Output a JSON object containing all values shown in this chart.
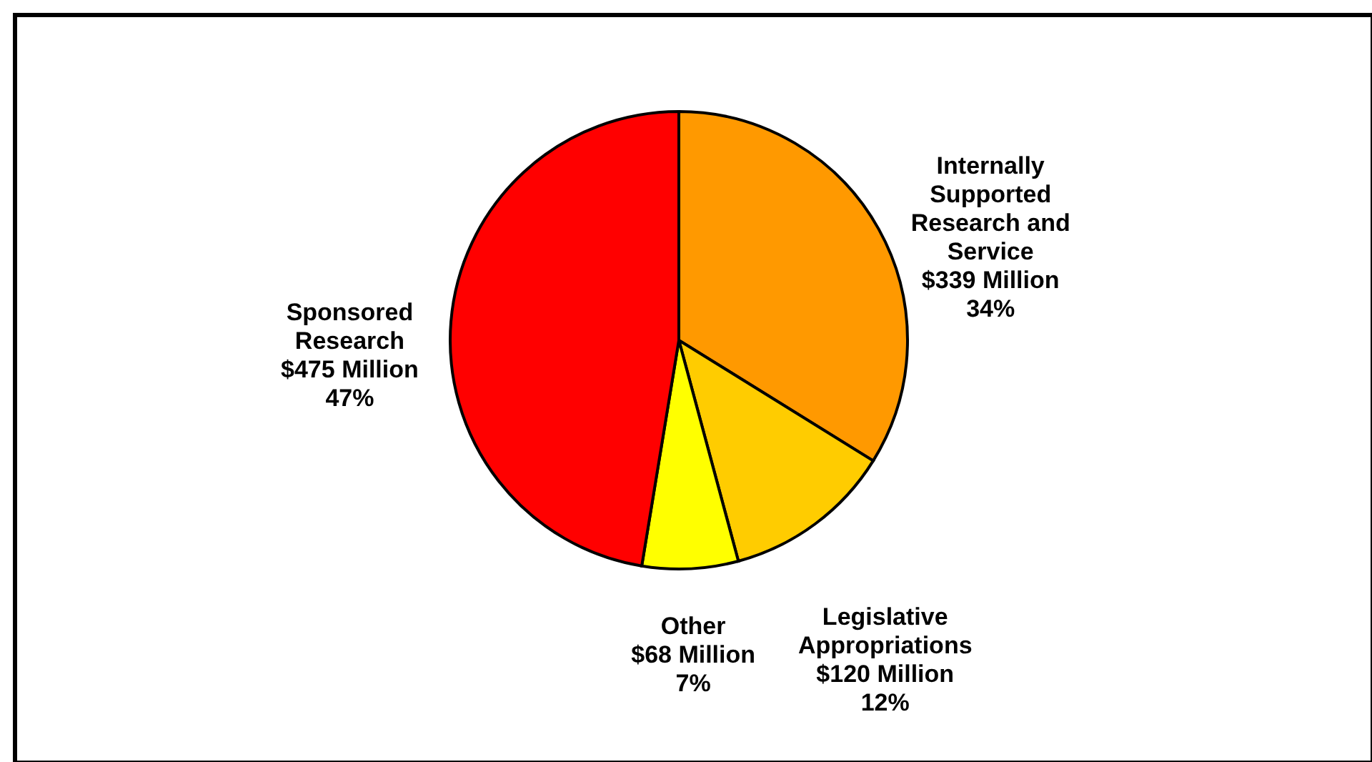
{
  "chart_data": {
    "type": "pie",
    "categories": [
      "Internally Supported Research and Service",
      "Legislative Appropriations",
      "Other",
      "Sponsored Research"
    ],
    "values": [
      339,
      120,
      68,
      475
    ],
    "colors": [
      "#ff9900",
      "#ffcc00",
      "#ffff00",
      "#ff0000"
    ],
    "value_labels": [
      "$339 Million\n34%",
      "$120 Million\n12%",
      "$68 Million\n7%",
      "$475 Million\n47%"
    ]
  }
}
